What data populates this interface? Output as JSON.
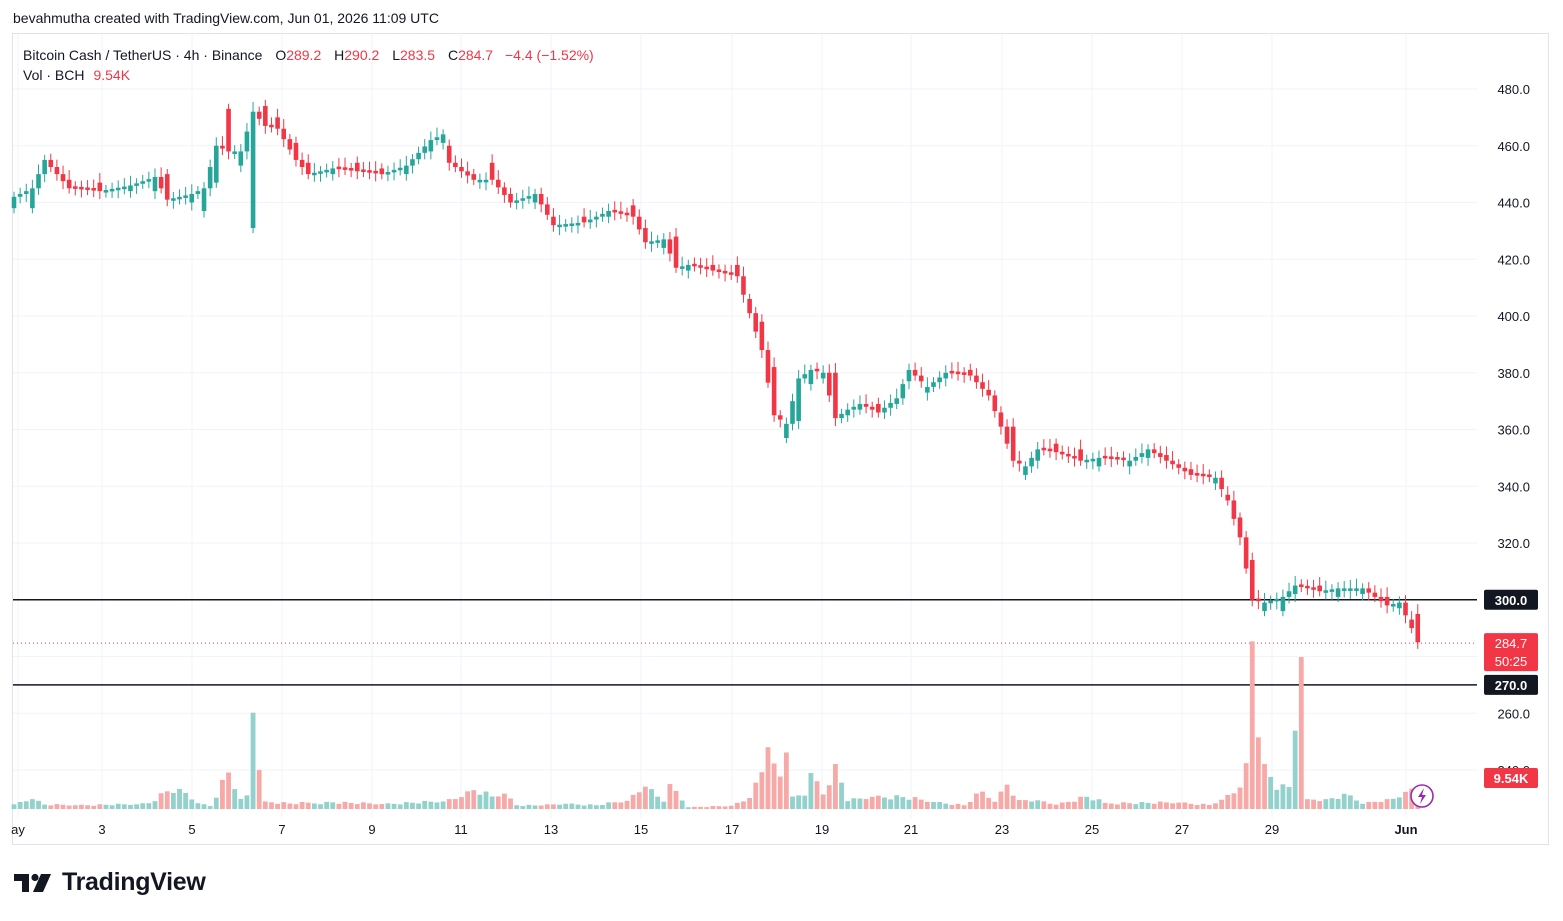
{
  "attribution": "bevahmutha created with TradingView.com, Jun 01, 2026 11:09 UTC",
  "legend": {
    "symbol": "Bitcoin Cash / TetherUS · 4h · Binance",
    "o_label": "O",
    "o_value": "289.2",
    "h_label": "H",
    "h_value": "290.2",
    "l_label": "L",
    "l_value": "283.5",
    "c_label": "C",
    "c_value": "284.7",
    "change": "−4.4 (−1.52%)",
    "vol_label": "Vol · BCH",
    "vol_value": "9.54K"
  },
  "brand": {
    "name": "TradingView"
  },
  "colors": {
    "up": "#26a69a",
    "down": "#f23645",
    "vol_up": "#92d1cc",
    "vol_down": "#f7a9a7",
    "level": "#131722"
  },
  "chart_data": {
    "type": "candlestick",
    "y_axis": {
      "min": 240,
      "max": 480,
      "ticks": [
        "480.0",
        "460.0",
        "440.0",
        "420.0",
        "400.0",
        "380.0",
        "360.0",
        "340.0",
        "320.0",
        "300.0",
        "260.0",
        "240.0"
      ]
    },
    "x_axis": {
      "ticks": [
        "ay",
        "3",
        "5",
        "7",
        "9",
        "11",
        "13",
        "15",
        "17",
        "19",
        "21",
        "23",
        "25",
        "27",
        "29",
        "Jun"
      ]
    },
    "horizontal_levels": [
      300.0,
      270.0
    ],
    "price_labels": [
      {
        "price": "300.0",
        "kind": "level"
      },
      {
        "price": "270.0",
        "kind": "level"
      },
      {
        "price": "284.7",
        "countdown": "50:25",
        "kind": "last"
      }
    ],
    "volume_label": "9.54K",
    "grid": true,
    "anchors": [
      [
        0,
        442,
        "u",
        4
      ],
      [
        3,
        445,
        "u",
        7
      ],
      [
        5,
        455,
        "u",
        5
      ],
      [
        9,
        445,
        "d",
        3
      ],
      [
        14,
        444,
        "d",
        3
      ],
      [
        19,
        446,
        "u",
        2
      ],
      [
        23,
        449,
        "u",
        5
      ],
      [
        25,
        441,
        "d",
        9
      ],
      [
        29,
        443,
        "u",
        3
      ],
      [
        31,
        445,
        "u",
        8
      ],
      [
        33,
        460,
        "u",
        13
      ],
      [
        35,
        458,
        "d",
        15
      ],
      [
        37,
        458,
        "u",
        5
      ],
      [
        39,
        472,
        "u",
        41
      ],
      [
        41,
        467,
        "d",
        7
      ],
      [
        43,
        466,
        "d",
        4
      ],
      [
        46,
        455,
        "d",
        6
      ],
      [
        48,
        450,
        "d",
        4
      ],
      [
        52,
        452,
        "u",
        2
      ],
      [
        56,
        451,
        "d",
        3
      ],
      [
        60,
        450,
        "d",
        2
      ],
      [
        64,
        453,
        "u",
        3
      ],
      [
        68,
        462,
        "u",
        4
      ],
      [
        70,
        464,
        "u",
        3
      ],
      [
        71,
        454,
        "d",
        6
      ],
      [
        75,
        448,
        "d",
        2
      ],
      [
        78,
        448,
        "d",
        6
      ],
      [
        81,
        440,
        "d",
        3
      ],
      [
        85,
        443,
        "u",
        3
      ],
      [
        88,
        432,
        "d",
        3
      ],
      [
        93,
        433,
        "d",
        2
      ],
      [
        97,
        437,
        "u",
        2
      ],
      [
        101,
        435,
        "d",
        4
      ],
      [
        103,
        426,
        "d",
        5
      ],
      [
        106,
        427,
        "u",
        3
      ],
      [
        108,
        417,
        "d",
        11
      ],
      [
        110,
        418,
        "u",
        2
      ],
      [
        114,
        416,
        "d",
        2
      ],
      [
        118,
        414,
        "d",
        4
      ],
      [
        120,
        401,
        "d",
        5
      ],
      [
        122,
        388,
        "d",
        10
      ],
      [
        124,
        365,
        "d",
        17
      ],
      [
        126,
        362,
        "u",
        5
      ],
      [
        128,
        378,
        "u",
        15
      ],
      [
        130,
        381,
        "u",
        5
      ],
      [
        132,
        380,
        "u",
        2
      ],
      [
        134,
        364,
        "d",
        16
      ],
      [
        136,
        367,
        "u",
        2
      ],
      [
        138,
        369,
        "u",
        2
      ],
      [
        141,
        366,
        "d",
        3
      ],
      [
        144,
        371,
        "u",
        2
      ],
      [
        146,
        381,
        "u",
        4
      ],
      [
        149,
        375,
        "u",
        2
      ],
      [
        152,
        380,
        "u",
        2
      ],
      [
        156,
        379,
        "d",
        2
      ],
      [
        159,
        372,
        "d",
        2
      ],
      [
        161,
        361,
        "d",
        5
      ],
      [
        163,
        349,
        "d",
        12
      ],
      [
        165,
        347,
        "u",
        3
      ],
      [
        167,
        353,
        "u",
        4
      ],
      [
        170,
        352,
        "d",
        3
      ],
      [
        174,
        349,
        "d",
        4
      ],
      [
        177,
        350,
        "u",
        3
      ],
      [
        182,
        349,
        "u",
        2
      ],
      [
        185,
        353,
        "u",
        3
      ],
      [
        188,
        349,
        "d",
        2
      ],
      [
        192,
        344,
        "d",
        2
      ],
      [
        196,
        343,
        "u",
        2
      ],
      [
        198,
        335,
        "d",
        2
      ],
      [
        200,
        322,
        "d",
        7
      ],
      [
        202,
        300,
        "d",
        14
      ],
      [
        204,
        299,
        "u",
        3
      ],
      [
        207,
        301,
        "u",
        5
      ],
      [
        209,
        305,
        "u",
        3
      ],
      [
        213,
        303,
        "d",
        2
      ],
      [
        216,
        304,
        "u",
        3
      ],
      [
        220,
        304,
        "u",
        2
      ],
      [
        224,
        298,
        "d",
        3
      ],
      [
        226,
        299,
        "u",
        2
      ],
      [
        228,
        290,
        "d",
        3
      ],
      [
        229,
        285,
        "d",
        10
      ]
    ],
    "volume_anchors": [
      [
        0,
        1.6
      ],
      [
        3,
        3.4
      ],
      [
        5,
        1.5
      ],
      [
        10,
        1.3
      ],
      [
        20,
        1.6
      ],
      [
        22,
        2.0
      ],
      [
        25,
        6.1
      ],
      [
        27,
        6.9
      ],
      [
        30,
        2.0
      ],
      [
        32,
        1.0
      ],
      [
        35,
        12.6
      ],
      [
        37,
        3.5
      ],
      [
        38,
        4.7
      ],
      [
        39,
        33.2
      ],
      [
        41,
        2.6
      ],
      [
        45,
        1.9
      ],
      [
        52,
        2.3
      ],
      [
        60,
        1.7
      ],
      [
        70,
        2.6
      ],
      [
        73,
        4.1
      ],
      [
        75,
        6.5
      ],
      [
        78,
        4.3
      ],
      [
        80,
        5.3
      ],
      [
        82,
        1.3
      ],
      [
        86,
        1.2
      ],
      [
        90,
        1.8
      ],
      [
        95,
        1.3
      ],
      [
        100,
        2.8
      ],
      [
        103,
        7.7
      ],
      [
        106,
        2.5
      ],
      [
        107,
        8.6
      ],
      [
        110,
        0.6
      ],
      [
        117,
        1.1
      ],
      [
        120,
        3.8
      ],
      [
        122,
        12.7
      ],
      [
        123,
        21.3
      ],
      [
        124,
        15.7
      ],
      [
        125,
        11.2
      ],
      [
        126,
        19.5
      ],
      [
        127,
        4.3
      ],
      [
        129,
        4.6
      ],
      [
        130,
        12.4
      ],
      [
        132,
        5.0
      ],
      [
        134,
        15.5
      ],
      [
        136,
        2.7
      ],
      [
        140,
        4.2
      ],
      [
        145,
        4.1
      ],
      [
        150,
        2.4
      ],
      [
        155,
        1.3
      ],
      [
        158,
        6.0
      ],
      [
        160,
        2.5
      ],
      [
        162,
        8.4
      ],
      [
        164,
        3.1
      ],
      [
        167,
        3.0
      ],
      [
        170,
        1.5
      ],
      [
        175,
        4.2
      ],
      [
        178,
        2.1
      ],
      [
        185,
        2.1
      ],
      [
        190,
        2.2
      ],
      [
        195,
        1.4
      ],
      [
        197,
        3.2
      ],
      [
        200,
        7.4
      ],
      [
        201,
        15.8
      ],
      [
        202,
        57.8
      ],
      [
        203,
        24.7
      ],
      [
        204,
        15.5
      ],
      [
        206,
        6.6
      ],
      [
        208,
        7.6
      ],
      [
        210,
        52.4
      ],
      [
        211,
        3.4
      ],
      [
        214,
        3.4
      ],
      [
        218,
        4.7
      ],
      [
        220,
        1.8
      ],
      [
        224,
        3.4
      ],
      [
        225,
        3.5
      ],
      [
        227,
        5.9
      ],
      [
        228,
        7.0
      ],
      [
        229,
        4.2
      ]
    ]
  }
}
